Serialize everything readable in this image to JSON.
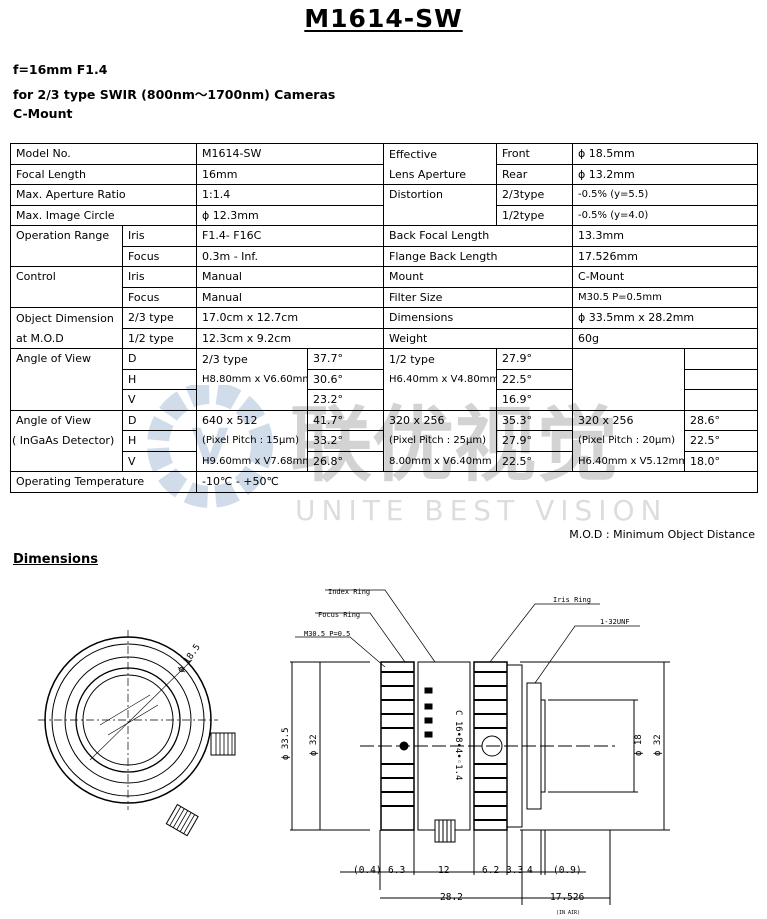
{
  "header": {
    "title": "M1614-SW",
    "line1": "f=16mm  F1.4",
    "line2": "for 2/3 type SWIR (800nm〜1700nm) Cameras",
    "line3": "C-Mount"
  },
  "spec": {
    "model_label": "Model No.",
    "model": "M1614-SW",
    "focal_label": "Focal Length",
    "focal": "16mm",
    "aperture_label": "Max. Aperture Ratio",
    "aperture": "1:1.4",
    "circle_label": "Max. Image Circle",
    "circle": "ϕ 12.3mm",
    "eff_label1": "Effective",
    "eff_label2": "Lens Aperture",
    "front_label": "Front",
    "front": "ϕ 18.5mm",
    "rear_label": "Rear",
    "rear": "ϕ 13.2mm",
    "dist_label": "Distortion",
    "dist23_label": "2/3type",
    "dist23": "-0.5% (y=5.5)",
    "dist12_label": "1/2type",
    "dist12": "-0.5% (y=4.0)",
    "oprange_label": "Operation Range",
    "iris_label": "Iris",
    "iris_range": "F1.4- F16C",
    "focus_label": "Focus",
    "focus_range": "0.3m - Inf.",
    "bfl_label": "Back Focal Length",
    "bfl": "13.3mm",
    "flange_label": "Flange Back Length",
    "flange": "17.526mm",
    "control_label": "Control",
    "iris_ctrl": "Manual",
    "focus_ctrl": "Manual",
    "mount_label": "Mount",
    "mount": "C-Mount",
    "filter_label": "Filter Size",
    "filter": "M30.5 P=0.5mm",
    "objdim_label1": "Object Dimension",
    "objdim_label2": "at M.O.D",
    "type23": "2/3 type",
    "objdim23": "17.0cm x 12.7cm",
    "type12": "1/2 type",
    "objdim12": "12.3cm x 9.2cm",
    "dims_label": "Dimensions",
    "dims": "ϕ 33.5mm x  28.2mm",
    "weight_label": "Weight",
    "weight": "60g",
    "aov_label": "Angle of View",
    "d": "D",
    "h": "H",
    "v": "V",
    "aov23_type": "2/3 type",
    "aov23_size": "H8.80mm x V6.60mm",
    "aov23": [
      "37.7°",
      "30.6°",
      "23.2°"
    ],
    "aov12_type": "1/2 type",
    "aov12_size": "H6.40mm x V4.80mm",
    "aov12": [
      "27.9°",
      "22.5°",
      "16.9°"
    ],
    "ingaas_label1": "Angle of View",
    "ingaas_label2": "( InGaAs Detector)",
    "det1": {
      "res": "640 x 512",
      "pitch": "(Pixel Pitch : 15μm)",
      "size": "H9.60mm x V7.68mm",
      "aov": [
        "41.7°",
        "33.2°",
        "26.8°"
      ]
    },
    "det2": {
      "res": "320 x 256",
      "pitch": "(Pixel Pitch : 25μm)",
      "size": "8.00mm x V6.40mm",
      "aov": [
        "35.3°",
        "27.9°",
        "22.5°"
      ]
    },
    "det3": {
      "res": "320 x 256",
      "pitch": "(Pixel Pitch : 20μm)",
      "size": "H6.40mm x V5.12mm",
      "aov": [
        "28.6°",
        "22.5°",
        "18.0°"
      ]
    },
    "temp_label": "Operating Temperature",
    "temp": "-10℃ - +50℃"
  },
  "mod_note": "M.O.D : Minimum Object Distance",
  "watermark": {
    "cn": "联优视觉",
    "en": "UNITE BEST VISION",
    "color": "#5b86b5"
  },
  "dimensions": {
    "heading": "Dimensions",
    "labels": {
      "index_ring": "Index Ring",
      "focus_ring": "Focus Ring",
      "filter_thread": "M30.5 P=0.5",
      "iris_ring": "Iris Ring",
      "mount_thread": "1-32UNF",
      "front_dia": "ϕ 18.5",
      "dia335": "ϕ 33.5",
      "dia32a": "ϕ 32",
      "dia18": "ϕ 18",
      "dia32b": "ϕ 32",
      "scale": "C 16•8•4•◦1.4"
    },
    "dims": [
      "(0.4)",
      "6.3",
      "12",
      "6.2",
      "3.3",
      "4",
      "(0.9)"
    ],
    "total": "28.2",
    "flange": "17.526",
    "in_air": "(IN AIR)"
  }
}
